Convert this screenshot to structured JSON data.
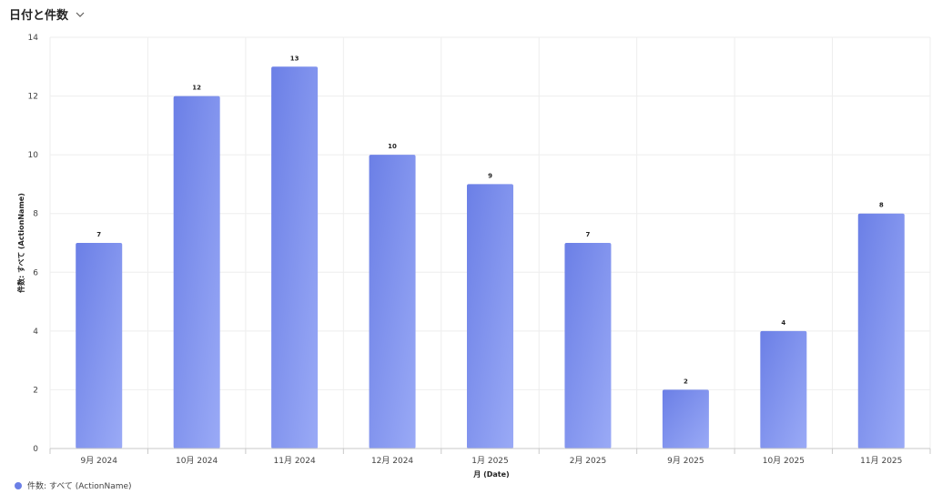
{
  "header": {
    "title": "日付と件数"
  },
  "legend": {
    "label": "件数: すべて (ActionName)"
  },
  "colors": {
    "bar_start": "#6b7fe6",
    "bar_end": "#9aaaf6",
    "grid": "#eeeeee",
    "axis": "#c8c8c8",
    "text": "#242424"
  },
  "chart_data": {
    "type": "bar",
    "categories": [
      "9月 2024",
      "10月 2024",
      "11月 2024",
      "12月 2024",
      "1月 2025",
      "2月 2025",
      "9月 2025",
      "10月 2025",
      "11月 2025"
    ],
    "values": [
      7,
      12,
      13,
      10,
      9,
      7,
      2,
      4,
      8
    ],
    "title": "",
    "xlabel": "月 (Date)",
    "ylabel": "件数: すべて (ActionName)",
    "ylim": [
      0,
      14
    ],
    "yticks": [
      0,
      2,
      4,
      6,
      8,
      10,
      12,
      14
    ],
    "grid": true,
    "legend_position": "bottom-left",
    "data_labels": true
  }
}
